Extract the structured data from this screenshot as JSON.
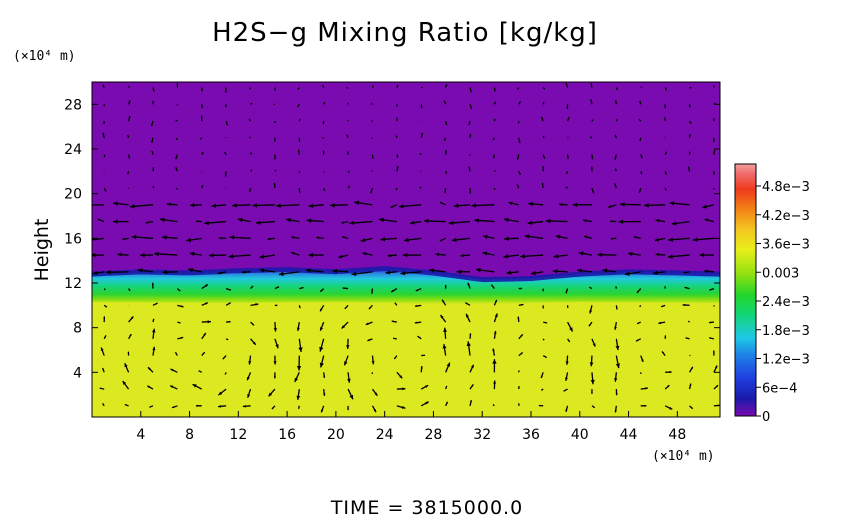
{
  "chart_data": {
    "type": "heatmap",
    "title": "H2S−g Mixing Ratio [kg/kg]",
    "xlabel": "",
    "ylabel": "Height",
    "x_unit_label": "(×10⁴ m)",
    "y_unit_label": "(×10⁴ m)",
    "xlim": [
      0,
      51.5
    ],
    "ylim": [
      0,
      30
    ],
    "x_ticks": [
      "4",
      "8",
      "12",
      "16",
      "20",
      "24",
      "28",
      "32",
      "36",
      "40",
      "44",
      "48"
    ],
    "y_ticks": [
      "4",
      "8",
      "12",
      "16",
      "20",
      "24",
      "28"
    ],
    "colorbar": {
      "range": [
        0,
        0.0054
      ],
      "ticks": [
        "4.8e−3",
        "4.2e−3",
        "3.6e−3",
        "0.003",
        "2.4e−3",
        "1.8e−3",
        "1.2e−3",
        "6e−4",
        "0"
      ]
    },
    "field": {
      "upper_value": 0,
      "lower_value": 0.0035,
      "interface_height": [
        [
          0,
          12.8
        ],
        [
          4,
          13.0
        ],
        [
          8,
          12.9
        ],
        [
          12,
          13.1
        ],
        [
          16,
          13.2
        ],
        [
          20,
          13.0
        ],
        [
          24,
          13.3
        ],
        [
          28,
          12.9
        ],
        [
          32,
          12.3
        ],
        [
          36,
          12.4
        ],
        [
          40,
          12.8
        ],
        [
          44,
          13.0
        ],
        [
          48,
          12.9
        ],
        [
          51.5,
          12.8
        ]
      ],
      "transition_bottom_height": [
        [
          0,
          10.3
        ],
        [
          10,
          10.2
        ],
        [
          20,
          10.3
        ],
        [
          30,
          10.1
        ],
        [
          40,
          10.3
        ],
        [
          51.5,
          10.2
        ]
      ]
    },
    "vectors": {
      "description": "wind vectors",
      "circulation_centers": [
        {
          "x": 10,
          "y": 5.5,
          "sense": "ccw"
        },
        {
          "x": 26.5,
          "y": 5.5,
          "sense": "cw"
        },
        {
          "x": 37.5,
          "y": 5.0,
          "sense": "ccw"
        },
        {
          "x": 44,
          "y": 5.5,
          "sense": "cw"
        }
      ],
      "upper_flow_band": [
        13,
        19
      ],
      "upper_flow_direction": "westward"
    },
    "annotation": "TIME = 3815000.0"
  }
}
